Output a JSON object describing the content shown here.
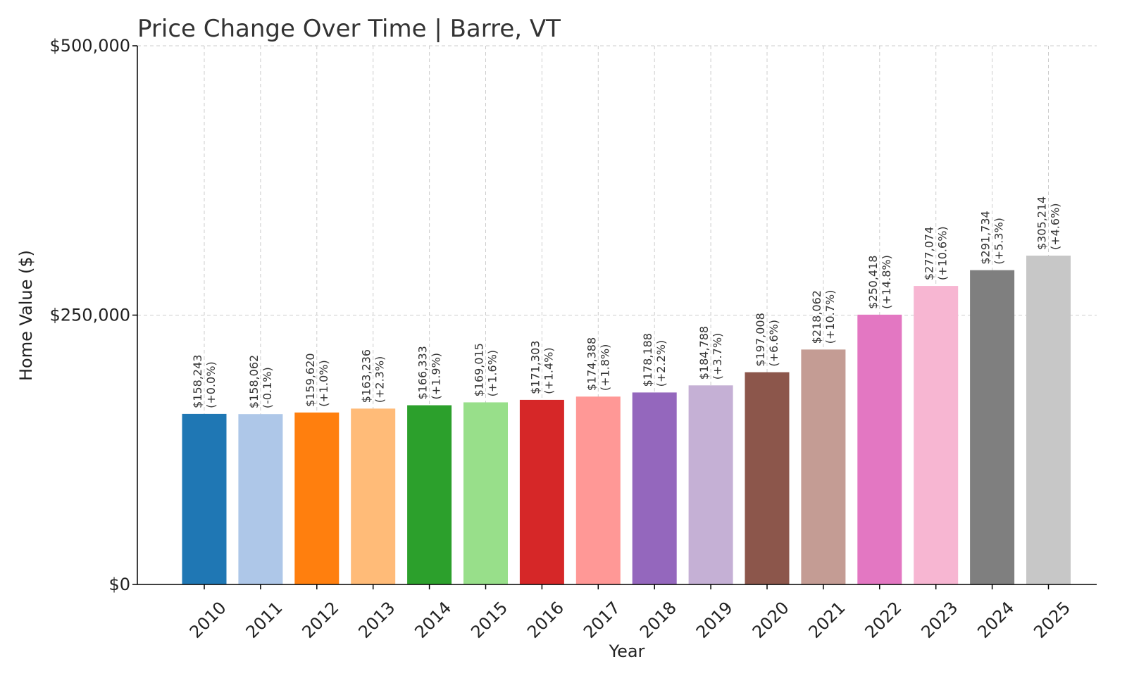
{
  "chart_data": {
    "type": "bar",
    "title": "Price Change Over Time | Barre, VT",
    "xlabel": "Year",
    "ylabel": "Home Value ($)",
    "ylim": [
      0,
      500000
    ],
    "yticks": [
      0,
      250000,
      500000
    ],
    "ytick_labels": [
      "$0",
      "$250,000",
      "$500,000"
    ],
    "grid": true,
    "categories": [
      "2010",
      "2011",
      "2012",
      "2013",
      "2014",
      "2015",
      "2016",
      "2017",
      "2018",
      "2019",
      "2020",
      "2021",
      "2022",
      "2023",
      "2024",
      "2025"
    ],
    "values": [
      158243,
      158062,
      159620,
      163236,
      166333,
      169015,
      171303,
      174388,
      178188,
      184788,
      197008,
      218062,
      250418,
      277074,
      291734,
      305214
    ],
    "value_labels": [
      "$158,243",
      "$158,062",
      "$159,620",
      "$163,236",
      "$166,333",
      "$169,015",
      "$171,303",
      "$174,388",
      "$178,188",
      "$184,788",
      "$197,008",
      "$218,062",
      "$250,418",
      "$277,074",
      "$291,734",
      "$305,214"
    ],
    "change_labels": [
      "(+0.0%)",
      "(-0.1%)",
      "(+1.0%)",
      "(+2.3%)",
      "(+1.9%)",
      "(+1.6%)",
      "(+1.4%)",
      "(+1.8%)",
      "(+2.2%)",
      "(+3.7%)",
      "(+6.6%)",
      "(+10.7%)",
      "(+14.8%)",
      "(+10.6%)",
      "(+5.3%)",
      "(+4.6%)"
    ],
    "colors": [
      "#1f77b4",
      "#aec7e8",
      "#ff7f0e",
      "#ffbb78",
      "#2ca02c",
      "#98df8a",
      "#d62728",
      "#ff9896",
      "#9467bd",
      "#c5b0d5",
      "#8c564b",
      "#c49c94",
      "#e377c2",
      "#f7b6d2",
      "#7f7f7f",
      "#c7c7c7"
    ]
  }
}
